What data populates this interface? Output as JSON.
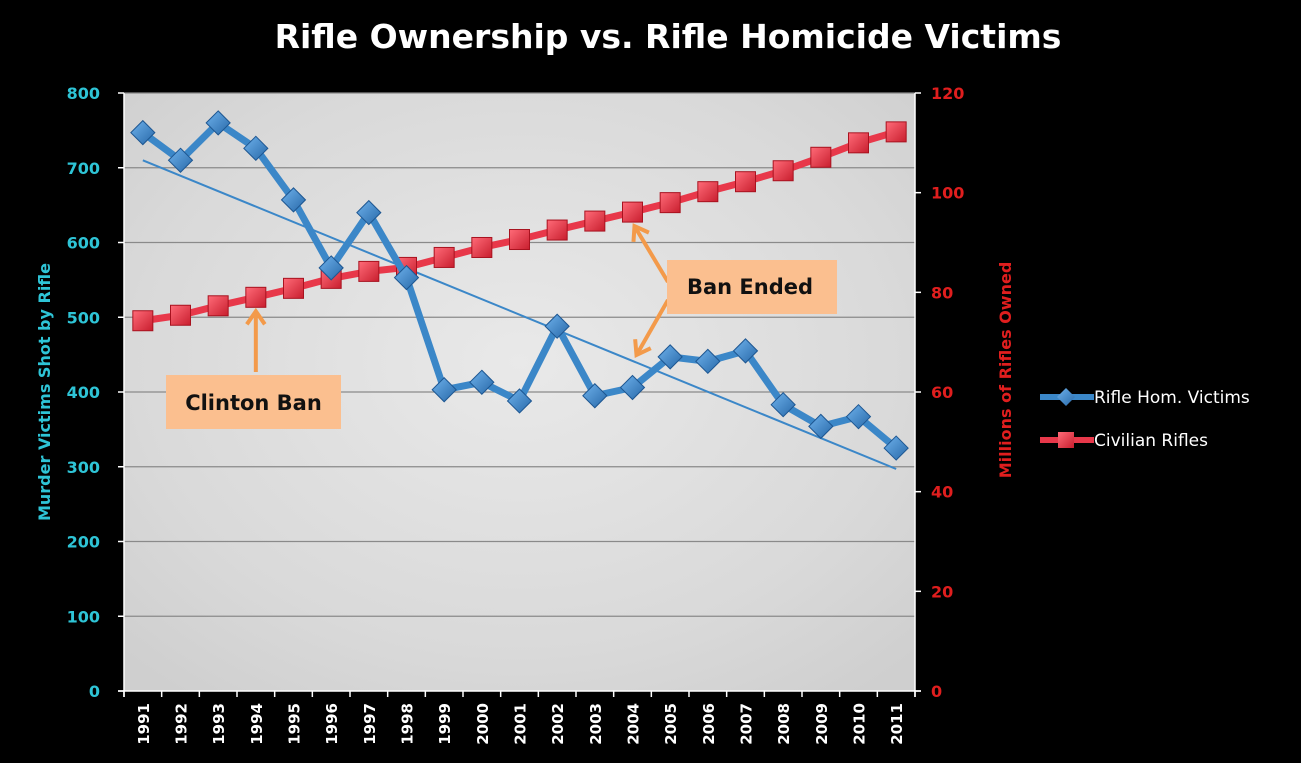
{
  "chart_data": {
    "type": "line",
    "title": "Rifle Ownership vs. Rifle Homicide Victims",
    "xlabel": "",
    "ylabel": "Murder Victims Shot by Rifle",
    "y2label": "Millions of Rifles Owned",
    "categories": [
      "1991",
      "1992",
      "1993",
      "1994",
      "1995",
      "1996",
      "1997",
      "1998",
      "1999",
      "2000",
      "2001",
      "2002",
      "2003",
      "2004",
      "2005",
      "2006",
      "2007",
      "2008",
      "2009",
      "2010",
      "2011"
    ],
    "ylim": [
      0,
      800
    ],
    "y2lim": [
      0,
      120
    ],
    "yticks": [
      "0",
      "100",
      "200",
      "300",
      "400",
      "500",
      "600",
      "700",
      "800"
    ],
    "y2ticks": [
      "0",
      "20",
      "40",
      "60",
      "80",
      "100",
      "120"
    ],
    "grid": true,
    "legend_position": "right",
    "series": [
      {
        "name": "Rifle Hom. Victims",
        "axis": "left",
        "color": "#3b87c8",
        "marker": "diamond",
        "values": [
          747,
          710,
          760,
          726,
          657,
          566,
          640,
          553,
          403,
          413,
          388,
          488,
          395,
          406,
          447,
          441,
          455,
          383,
          354,
          367,
          325
        ]
      },
      {
        "name": "Civilian Rifles",
        "axis": "right",
        "color": "#e8384a",
        "marker": "square",
        "values": [
          74.3,
          75.4,
          77.3,
          79.0,
          80.8,
          82.8,
          84.2,
          85.0,
          87.0,
          89.0,
          90.6,
          92.5,
          94.3,
          96.1,
          98.0,
          100.2,
          102.2,
          104.4,
          107.1,
          110.0,
          112.2
        ]
      }
    ],
    "trendline": {
      "series": "Rifle Hom. Victims",
      "color": "#3b87c8",
      "start": 710,
      "end": 297
    },
    "annotations": [
      {
        "label": "Clinton Ban",
        "year": "1994",
        "fill": "#fbbf8f"
      },
      {
        "label": "Ban Ended",
        "year": "2004",
        "fill": "#fbbf8f"
      }
    ],
    "arrow_color": "#f39a4a"
  }
}
